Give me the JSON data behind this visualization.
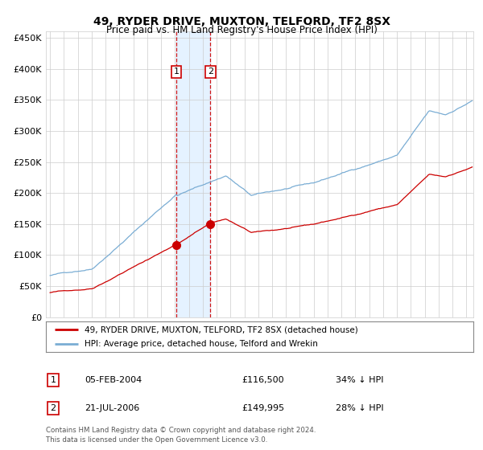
{
  "title": "49, RYDER DRIVE, MUXTON, TELFORD, TF2 8SX",
  "subtitle": "Price paid vs. HM Land Registry's House Price Index (HPI)",
  "legend_line1": "49, RYDER DRIVE, MUXTON, TELFORD, TF2 8SX (detached house)",
  "legend_line2": "HPI: Average price, detached house, Telford and Wrekin",
  "table_row1": [
    "1",
    "05-FEB-2004",
    "£116,500",
    "34% ↓ HPI"
  ],
  "table_row2": [
    "2",
    "21-JUL-2006",
    "£149,995",
    "28% ↓ HPI"
  ],
  "footer": "Contains HM Land Registry data © Crown copyright and database right 2024.\nThis data is licensed under the Open Government Licence v3.0.",
  "hpi_color": "#7aadd4",
  "price_color": "#cc0000",
  "sale1_date_x": 2004.09,
  "sale1_price": 116500,
  "sale2_date_x": 2006.55,
  "sale2_price": 149995,
  "shade_x1": 2004.09,
  "shade_x2": 2006.55,
  "ylim": [
    0,
    460000
  ],
  "xlim_start": 1994.7,
  "xlim_end": 2025.5,
  "background_color": "#ffffff",
  "grid_color": "#cccccc"
}
